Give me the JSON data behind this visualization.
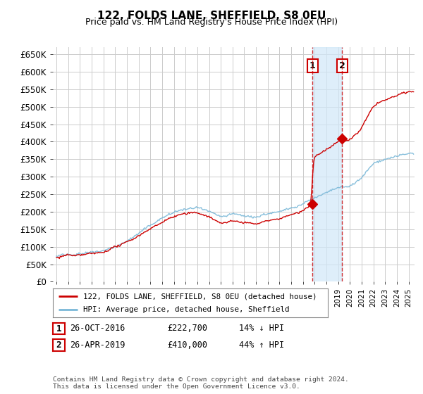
{
  "title": "122, FOLDS LANE, SHEFFIELD, S8 0EU",
  "subtitle": "Price paid vs. HM Land Registry's House Price Index (HPI)",
  "ylabel_ticks": [
    "£0",
    "£50K",
    "£100K",
    "£150K",
    "£200K",
    "£250K",
    "£300K",
    "£350K",
    "£400K",
    "£450K",
    "£500K",
    "£550K",
    "£600K",
    "£650K"
  ],
  "ytick_vals": [
    0,
    50000,
    100000,
    150000,
    200000,
    250000,
    300000,
    350000,
    400000,
    450000,
    500000,
    550000,
    600000,
    650000
  ],
  "ylim": [
    0,
    670000
  ],
  "xlim_start": 1994.7,
  "xlim_end": 2025.5,
  "hpi_color": "#7ab8d8",
  "price_color": "#cc0000",
  "sale1_x": 2016.82,
  "sale1_y": 222700,
  "sale2_x": 2019.33,
  "sale2_y": 410000,
  "vline1_x": 2016.82,
  "vline2_x": 2019.33,
  "shade_color": "#d0e8f8",
  "legend_label1": "122, FOLDS LANE, SHEFFIELD, S8 0EU (detached house)",
  "legend_label2": "HPI: Average price, detached house, Sheffield",
  "table_row1": [
    "1",
    "26-OCT-2016",
    "£222,700",
    "14% ↓ HPI"
  ],
  "table_row2": [
    "2",
    "26-APR-2019",
    "£410,000",
    "44% ↑ HPI"
  ],
  "footnote": "Contains HM Land Registry data © Crown copyright and database right 2024.\nThis data is licensed under the Open Government Licence v3.0.",
  "fig_bg": "#ffffff",
  "plot_bg": "#ffffff",
  "grid_color": "#cccccc"
}
